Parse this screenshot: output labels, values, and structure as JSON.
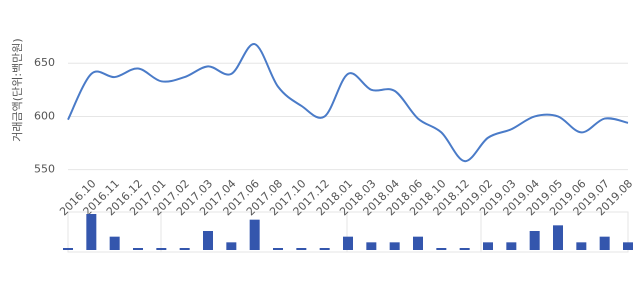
{
  "chart_data": [
    {
      "type": "line",
      "y_label": "거래금액(단위:백만원)",
      "categories": [
        null,
        "2016.10",
        "2016.11",
        "2016.12",
        "2017.01",
        "2017.02",
        "2017.03",
        "2017.04",
        "2017.06",
        "2017.08",
        "2017.10",
        "2017.12",
        "2018.01",
        "2018.03",
        "2018.04",
        "2018.06",
        "2018.10",
        "2018.12",
        "2019.02",
        "2019.03",
        "2019.04",
        "2019.05",
        "2019.06",
        "2019.07",
        "2019.08"
      ],
      "values": [
        597,
        640,
        637,
        645,
        633,
        637,
        647,
        640,
        668,
        628,
        610,
        600,
        640,
        625,
        624,
        598,
        585,
        558,
        580,
        588,
        600,
        600,
        585,
        598,
        594
      ],
      "color": "#4a7bc8",
      "ylim": [
        545,
        700
      ],
      "yticks": [
        550,
        600,
        650
      ],
      "grid": true
    },
    {
      "type": "bar",
      "color": "#3456ad",
      "values": [
        0,
        6,
        2,
        0,
        0,
        0,
        3,
        1,
        5,
        0,
        0,
        0,
        2,
        1,
        1,
        2,
        0,
        0,
        1,
        1,
        3,
        4,
        1,
        2,
        1
      ]
    }
  ]
}
